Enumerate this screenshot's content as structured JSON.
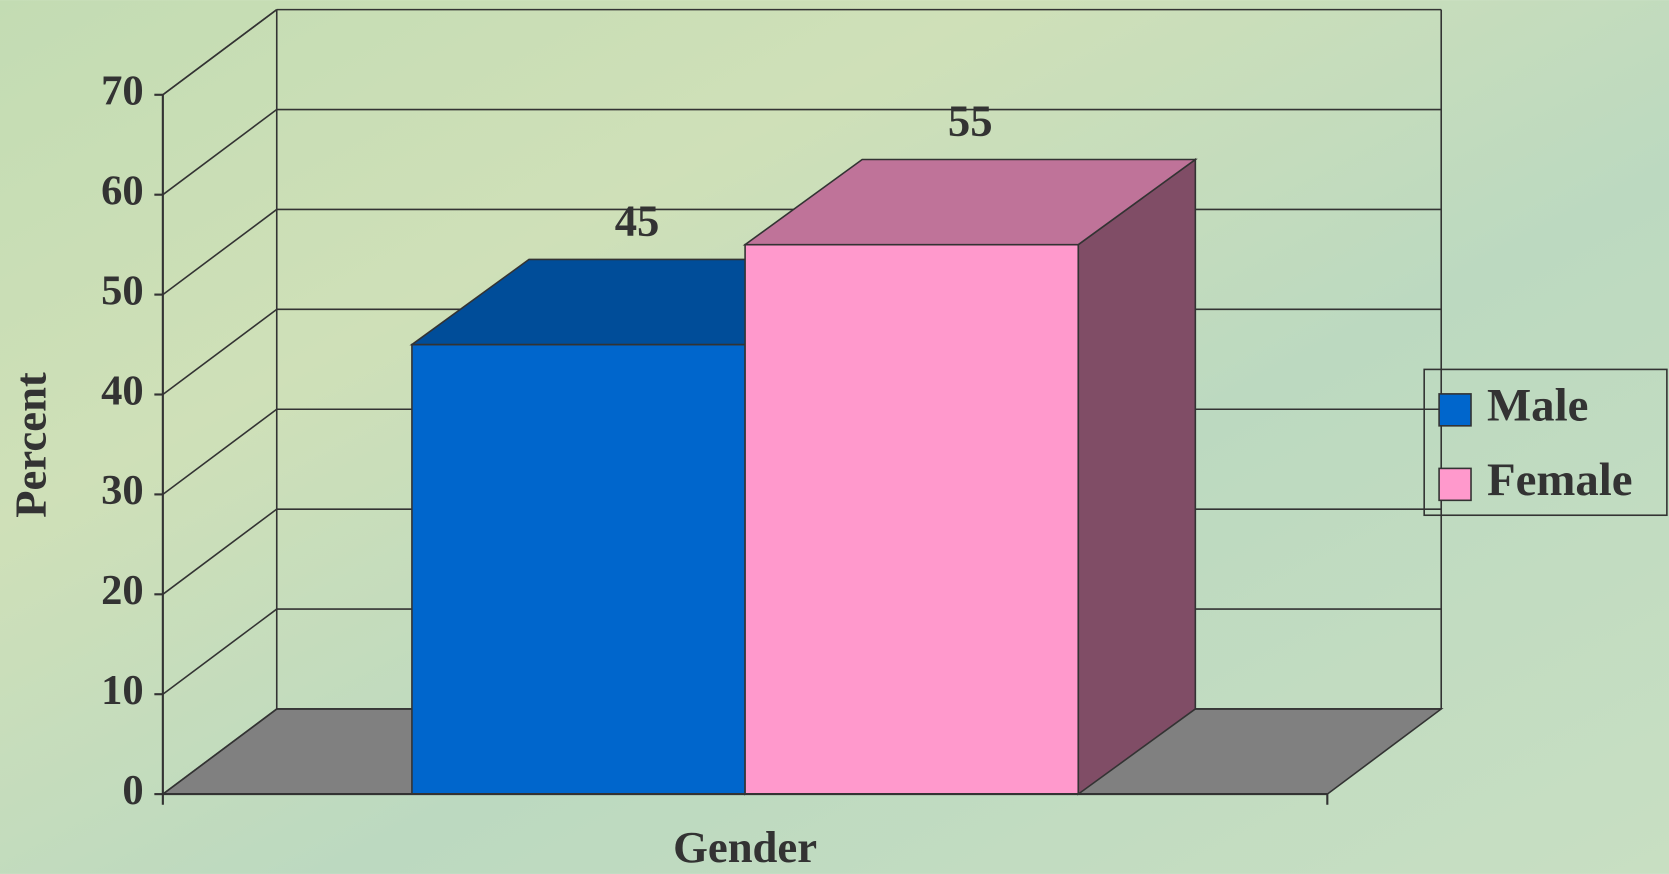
{
  "chart_data": {
    "type": "bar3d",
    "x_label": "Gender",
    "y_label": "Percent",
    "categories": [
      null
    ],
    "series": [
      {
        "name": "Male",
        "color": "#0066cc",
        "values": [
          45
        ]
      },
      {
        "name": "Female",
        "color": "#ff99cc",
        "values": [
          55
        ]
      }
    ],
    "ylim": [
      0,
      70
    ],
    "yticks": [
      0,
      10,
      20,
      30,
      40,
      50,
      60,
      70
    ],
    "grid": true,
    "legend": "right"
  }
}
